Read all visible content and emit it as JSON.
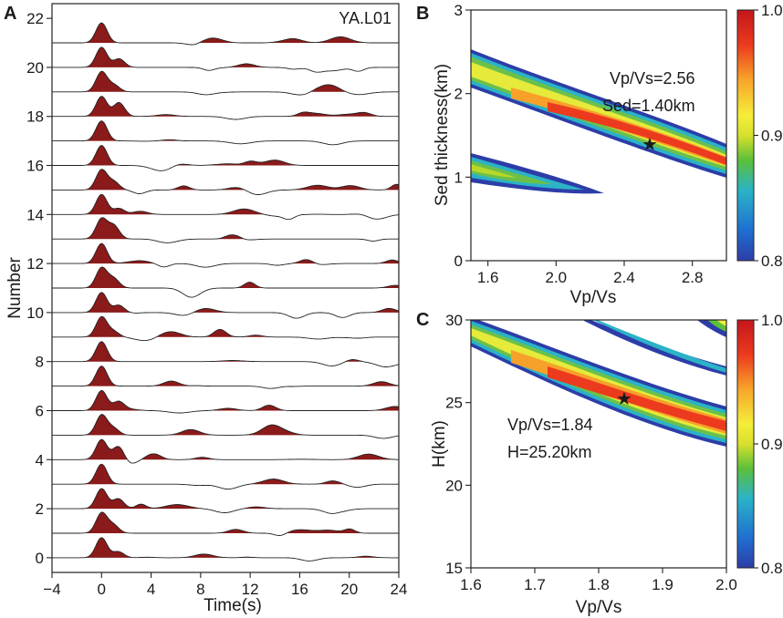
{
  "panels": {
    "A": {
      "letter": "A",
      "station": "YA.L01",
      "xlabel": "Time(s)",
      "ylabel": "Number"
    },
    "B": {
      "letter": "B",
      "xlabel": "Vp/Vs",
      "ylabel": "Sed thickness(km)",
      "annotation_line1": "Vp/Vs=2.56",
      "annotation_line2": "Sed=1.40km"
    },
    "C": {
      "letter": "C",
      "xlabel": "Vp/Vs",
      "ylabel": "H(km)",
      "annotation_line1": "Vp/Vs=1.84",
      "annotation_line2": "H=25.20km"
    }
  },
  "chart_data": [
    {
      "id": "A",
      "type": "line",
      "title": "YA.L01",
      "xlabel": "Time(s)",
      "ylabel": "Number",
      "xlim": [
        -4,
        24
      ],
      "xticks": [
        -4,
        0,
        4,
        8,
        12,
        16,
        20,
        24
      ],
      "ylim": [
        -0.6,
        22.6
      ],
      "yticks": [
        0,
        2,
        4,
        6,
        8,
        10,
        12,
        14,
        16,
        18,
        20,
        22
      ],
      "trace_count": 22,
      "trace_numbers": [
        0,
        1,
        2,
        3,
        4,
        5,
        6,
        7,
        8,
        9,
        10,
        11,
        12,
        13,
        14,
        15,
        16,
        17,
        18,
        19,
        20,
        21
      ],
      "direct_p_peak_time_s": 0,
      "fill_positive_color": "#8b1a1a"
    },
    {
      "id": "B",
      "type": "heatmap",
      "xlabel": "Vp/Vs",
      "ylabel": "Sed thickness(km)",
      "xlim": [
        1.5,
        3.0
      ],
      "xticks": [
        1.6,
        2.0,
        2.4,
        2.8
      ],
      "ylim": [
        0,
        3
      ],
      "yticks": [
        0,
        1,
        2,
        3
      ],
      "colorbar": {
        "min": 0.8,
        "max": 1.0,
        "ticks": [
          0.8,
          0.9,
          1.0
        ],
        "tick_labels": [
          "0.8",
          "0.9",
          "1.0"
        ]
      },
      "best_fit": {
        "vpvs": 2.56,
        "thickness_km": 1.4
      }
    },
    {
      "id": "C",
      "type": "heatmap",
      "xlabel": "Vp/Vs",
      "ylabel": "H(km)",
      "xlim": [
        1.6,
        2.0
      ],
      "xticks": [
        1.6,
        1.7,
        1.8,
        1.9,
        2.0
      ],
      "ylim": [
        15,
        30
      ],
      "yticks": [
        15,
        20,
        25,
        30
      ],
      "colorbar": {
        "min": 0.8,
        "max": 1.0,
        "ticks": [
          0.8,
          0.9,
          1.0
        ],
        "tick_labels": [
          "0.8",
          "0.9",
          "1.0"
        ]
      },
      "best_fit": {
        "vpvs": 1.84,
        "H_km": 25.2
      }
    }
  ],
  "colors": {
    "fill": "#8b1a1a",
    "star": "#111111",
    "colormap": [
      "#2c3da8",
      "#1f6fd0",
      "#2bb3c7",
      "#5bbf3a",
      "#b8d82a",
      "#f5ee3a",
      "#f8a52a",
      "#ec3a1e",
      "#c4161c"
    ]
  }
}
